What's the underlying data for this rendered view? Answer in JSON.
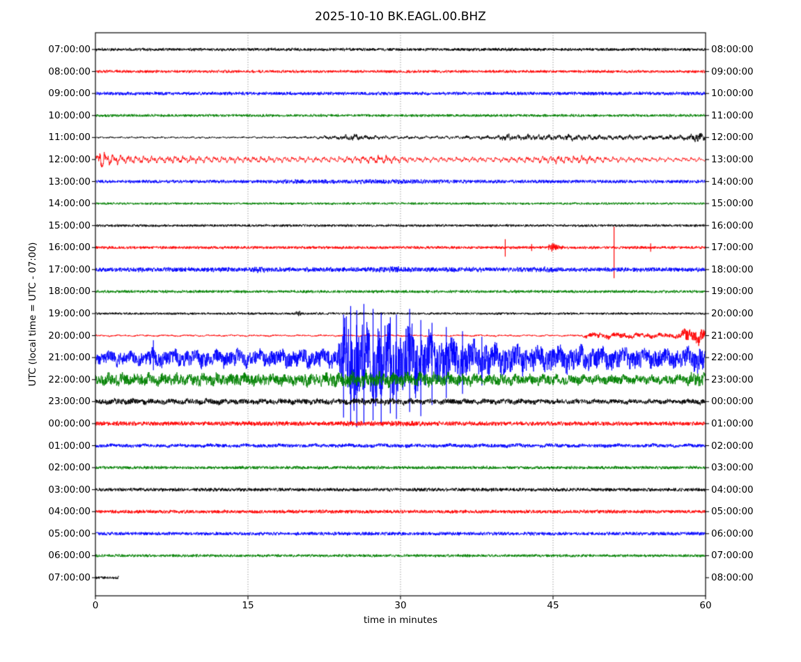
{
  "chart_data": {
    "type": "line",
    "subtype": "helicorder-seismogram",
    "title": "2025-10-10 BK.EAGL.00.BHZ",
    "xlabel": "time in minutes",
    "ylabel": "UTC (local time = UTC - 07:00)",
    "x_ticks": [
      0,
      15,
      30,
      45,
      60
    ],
    "x_range_minutes": [
      0,
      60
    ],
    "gridlines_minutes": [
      15,
      30,
      45
    ],
    "grid_style": "dotted-vertical",
    "minutes_per_row": 60,
    "color_cycle": [
      "#000000",
      "#ff0000",
      "#0000ff",
      "#008000"
    ],
    "rows": [
      {
        "utc_start": "07:00:00",
        "utc_end": "08:00:00",
        "color": "#000000",
        "style": "hf",
        "env": [
          [
            0,
            2.1
          ],
          [
            60,
            2.1
          ]
        ]
      },
      {
        "utc_start": "08:00:00",
        "utc_end": "09:00:00",
        "color": "#ff0000",
        "style": "hf",
        "env": [
          [
            0,
            2.0
          ],
          [
            60,
            2.0
          ]
        ]
      },
      {
        "utc_start": "09:00:00",
        "utc_end": "10:00:00",
        "color": "#0000ff",
        "style": "hf",
        "env": [
          [
            0,
            2.4
          ],
          [
            60,
            2.4
          ]
        ]
      },
      {
        "utc_start": "10:00:00",
        "utc_end": "11:00:00",
        "color": "#008000",
        "style": "hf",
        "env": [
          [
            0,
            1.9
          ],
          [
            60,
            1.9
          ]
        ]
      },
      {
        "utc_start": "11:00:00",
        "utc_end": "12:00:00",
        "color": "#000000",
        "style": "mixed",
        "f": 2.0,
        "jit": 0.6,
        "sm": 0.62,
        "env": [
          [
            0,
            1.4
          ],
          [
            20,
            1.5
          ],
          [
            22,
            2.6
          ],
          [
            24,
            3
          ],
          [
            25.5,
            5.5
          ],
          [
            26.5,
            3.5
          ],
          [
            30,
            2.6
          ],
          [
            33,
            2.4
          ],
          [
            36,
            2.6
          ],
          [
            39.5,
            3
          ],
          [
            40.5,
            6
          ],
          [
            41.5,
            4
          ],
          [
            43,
            5
          ],
          [
            45,
            4
          ],
          [
            47,
            5
          ],
          [
            49,
            4
          ],
          [
            52,
            3.6
          ],
          [
            55,
            3.4
          ],
          [
            57,
            3.8
          ],
          [
            58.5,
            4.5
          ],
          [
            59.4,
            8
          ],
          [
            60,
            4
          ]
        ]
      },
      {
        "utc_start": "12:00:00",
        "utc_end": "13:00:00",
        "color": "#ff0000",
        "style": "lf",
        "f": 2.6,
        "jit": 0.3,
        "sm": 0.95,
        "env": [
          [
            0,
            6
          ],
          [
            0.4,
            16
          ],
          [
            0.9,
            12
          ],
          [
            1.6,
            8
          ],
          [
            3,
            6
          ],
          [
            6,
            5.5
          ],
          [
            10,
            5
          ],
          [
            14,
            4.5
          ],
          [
            18,
            4.2
          ],
          [
            22,
            4.2
          ],
          [
            25,
            4.6
          ],
          [
            27,
            5.8
          ],
          [
            28.5,
            6
          ],
          [
            30,
            4.6
          ],
          [
            33,
            3.8
          ],
          [
            36,
            3.6
          ],
          [
            40,
            4
          ],
          [
            43,
            4.6
          ],
          [
            45.5,
            5.6
          ],
          [
            47,
            5.8
          ],
          [
            49,
            5
          ],
          [
            51,
            4
          ],
          [
            54,
            3.4
          ],
          [
            57,
            3
          ],
          [
            60,
            3
          ]
        ]
      },
      {
        "utc_start": "13:00:00",
        "utc_end": "14:00:00",
        "color": "#0000ff",
        "style": "hf",
        "env": [
          [
            0,
            2.2
          ],
          [
            16,
            2.3
          ],
          [
            20,
            3
          ],
          [
            24,
            3
          ],
          [
            28,
            3.2
          ],
          [
            32,
            3
          ],
          [
            36,
            2.6
          ],
          [
            40,
            2.4
          ],
          [
            60,
            2.3
          ]
        ]
      },
      {
        "utc_start": "14:00:00",
        "utc_end": "15:00:00",
        "color": "#008000",
        "style": "hf",
        "env": [
          [
            0,
            1.6
          ],
          [
            60,
            1.6
          ]
        ]
      },
      {
        "utc_start": "15:00:00",
        "utc_end": "16:00:00",
        "color": "#000000",
        "style": "hf",
        "env": [
          [
            0,
            1.8
          ],
          [
            60,
            1.8
          ]
        ]
      },
      {
        "utc_start": "16:00:00",
        "utc_end": "17:00:00",
        "color": "#ff0000",
        "style": "hf",
        "env": [
          [
            0,
            2
          ],
          [
            44.4,
            2
          ],
          [
            44.8,
            7
          ],
          [
            45.6,
            4
          ],
          [
            46.2,
            2
          ],
          [
            60,
            2
          ]
        ],
        "spikes": [
          {
            "min": 40.3,
            "up": 12,
            "down": 13
          },
          {
            "min": 42.9,
            "up": 5,
            "down": 5
          },
          {
            "min": 51.0,
            "up": 30,
            "down": 44
          },
          {
            "min": 54.6,
            "up": 6,
            "down": 6
          }
        ]
      },
      {
        "utc_start": "17:00:00",
        "utc_end": "18:00:00",
        "color": "#0000ff",
        "style": "hf",
        "env": [
          [
            0,
            3
          ],
          [
            7,
            3.3
          ],
          [
            15,
            3.1
          ],
          [
            16,
            5
          ],
          [
            17,
            3.2
          ],
          [
            27,
            3.2
          ],
          [
            29.5,
            4.6
          ],
          [
            31.5,
            3.4
          ],
          [
            42.5,
            3.1
          ],
          [
            44,
            4.2
          ],
          [
            45.5,
            3.1
          ],
          [
            52,
            3
          ],
          [
            60,
            3
          ]
        ]
      },
      {
        "utc_start": "18:00:00",
        "utc_end": "19:00:00",
        "color": "#008000",
        "style": "hf",
        "env": [
          [
            0,
            2
          ],
          [
            60,
            2
          ]
        ]
      },
      {
        "utc_start": "19:00:00",
        "utc_end": "20:00:00",
        "color": "#000000",
        "style": "hf",
        "env": [
          [
            0,
            1.6
          ],
          [
            19.6,
            1.6
          ],
          [
            20,
            4.2
          ],
          [
            20.4,
            1.6
          ],
          [
            60,
            1.6
          ]
        ]
      },
      {
        "utc_start": "20:00:00",
        "utc_end": "21:00:00",
        "color": "#ff0000",
        "style": "mixed",
        "f": 0.9,
        "jit": 0.6,
        "sm": 0.65,
        "env": [
          [
            0,
            1.5
          ],
          [
            47.8,
            1.5
          ],
          [
            48.3,
            4
          ],
          [
            49.5,
            5.5
          ],
          [
            51,
            5
          ],
          [
            53,
            4.6
          ],
          [
            55,
            4.2
          ],
          [
            57,
            4.5
          ],
          [
            57.6,
            7
          ],
          [
            58.1,
            14
          ],
          [
            58.7,
            9
          ],
          [
            59.2,
            15
          ],
          [
            59.7,
            12
          ],
          [
            60,
            8
          ]
        ]
      },
      {
        "utc_start": "21:00:00",
        "utc_end": "22:00:00",
        "color": "#0000ff",
        "style": "mixed",
        "f": 0.95,
        "jit": 0.75,
        "sm": 0.5,
        "downBias": 1.25,
        "env": [
          [
            0,
            8
          ],
          [
            1.5,
            10
          ],
          [
            3,
            9
          ],
          [
            5,
            10
          ],
          [
            5.7,
            14
          ],
          [
            6.3,
            11
          ],
          [
            8,
            11
          ],
          [
            10,
            12
          ],
          [
            12,
            11
          ],
          [
            14,
            12
          ],
          [
            16,
            11
          ],
          [
            18,
            12
          ],
          [
            20,
            12
          ],
          [
            22,
            13
          ],
          [
            23.6,
            13
          ],
          [
            24.2,
            35
          ],
          [
            24.7,
            60
          ],
          [
            25.3,
            58
          ],
          [
            26,
            60
          ],
          [
            27,
            56
          ],
          [
            28,
            52
          ],
          [
            29,
            48
          ],
          [
            30,
            45
          ],
          [
            31,
            48
          ],
          [
            32,
            42
          ],
          [
            33,
            38
          ],
          [
            34,
            34
          ],
          [
            35,
            30
          ],
          [
            36,
            27
          ],
          [
            37,
            24
          ],
          [
            38,
            23
          ],
          [
            39,
            22
          ],
          [
            40,
            21
          ],
          [
            42,
            19
          ],
          [
            44,
            18
          ],
          [
            46,
            17
          ],
          [
            48,
            16
          ],
          [
            50,
            15
          ],
          [
            52,
            14
          ],
          [
            54,
            14
          ],
          [
            56,
            13
          ],
          [
            57.5,
            13
          ],
          [
            58.5,
            16
          ],
          [
            59.2,
            20
          ],
          [
            60,
            15
          ]
        ],
        "spikes": [
          {
            "min": 5.7,
            "up": 25,
            "down": 18
          },
          {
            "min": 24.4,
            "up": 62,
            "down": 86
          },
          {
            "min": 25.1,
            "up": 74,
            "down": 96
          },
          {
            "min": 25.7,
            "up": 68,
            "down": 100
          },
          {
            "min": 26.4,
            "up": 77,
            "down": 95
          },
          {
            "min": 27.3,
            "up": 70,
            "down": 90
          },
          {
            "min": 28.1,
            "up": 64,
            "down": 94
          },
          {
            "min": 29.0,
            "up": 58,
            "down": 80
          },
          {
            "min": 29.6,
            "up": 62,
            "down": 88
          },
          {
            "min": 30.9,
            "up": 70,
            "down": 78
          },
          {
            "min": 32.0,
            "up": 54,
            "down": 84
          },
          {
            "min": 33.1,
            "up": 50,
            "down": 68
          },
          {
            "min": 34.5,
            "up": 44,
            "down": 58
          },
          {
            "min": 36.1,
            "up": 38,
            "down": 52
          },
          {
            "min": 38.0,
            "up": 30,
            "down": 40
          }
        ]
      },
      {
        "utc_start": "22:00:00",
        "utc_end": "23:00:00",
        "color": "#008000",
        "style": "mixed",
        "f": 1.5,
        "jit": 0.75,
        "sm": 0.5,
        "env": [
          [
            0,
            9
          ],
          [
            2,
            10
          ],
          [
            4,
            9
          ],
          [
            6,
            10
          ],
          [
            8,
            9
          ],
          [
            10,
            10
          ],
          [
            12,
            9
          ],
          [
            14,
            10
          ],
          [
            16,
            9
          ],
          [
            18,
            9
          ],
          [
            20,
            9.5
          ],
          [
            22,
            10
          ],
          [
            24,
            11
          ],
          [
            26,
            12
          ],
          [
            28,
            11
          ],
          [
            30,
            11
          ],
          [
            32,
            10.5
          ],
          [
            34,
            10
          ],
          [
            36,
            9.5
          ],
          [
            38,
            9
          ],
          [
            40,
            8.5
          ],
          [
            44,
            8
          ],
          [
            48,
            7.5
          ],
          [
            52,
            7
          ],
          [
            56,
            7
          ],
          [
            58,
            8
          ],
          [
            59,
            11
          ],
          [
            59.6,
            13
          ],
          [
            60,
            12
          ]
        ]
      },
      {
        "utc_start": "23:00:00",
        "utc_end": "00:00:00",
        "color": "#000000",
        "style": "mixed",
        "f": 1.1,
        "jit": 0.8,
        "sm": 0.45,
        "env": [
          [
            0,
            4
          ],
          [
            3,
            4.8
          ],
          [
            5,
            4.2
          ],
          [
            8,
            4
          ],
          [
            11,
            4.4
          ],
          [
            14,
            4.2
          ],
          [
            17,
            4
          ],
          [
            20,
            4.4
          ],
          [
            23,
            4.6
          ],
          [
            26,
            5
          ],
          [
            29,
            4.8
          ],
          [
            32,
            4.4
          ],
          [
            35,
            4.2
          ],
          [
            38,
            4
          ],
          [
            42,
            4
          ],
          [
            46,
            3.8
          ],
          [
            50,
            3.8
          ],
          [
            54,
            3.6
          ],
          [
            57,
            3.8
          ],
          [
            60,
            4.2
          ]
        ]
      },
      {
        "utc_start": "00:00:00",
        "utc_end": "01:00:00",
        "color": "#ff0000",
        "style": "hf",
        "env": [
          [
            0,
            3
          ],
          [
            10,
            3
          ],
          [
            20,
            3.2
          ],
          [
            26,
            3.5
          ],
          [
            32,
            3.4
          ],
          [
            38,
            3
          ],
          [
            60,
            2.8
          ]
        ]
      },
      {
        "utc_start": "01:00:00",
        "utc_end": "02:00:00",
        "color": "#0000ff",
        "style": "mixed",
        "f": 0.6,
        "jit": 0.8,
        "sm": 0.4,
        "env": [
          [
            0,
            2.8
          ],
          [
            20,
            3
          ],
          [
            40,
            3
          ],
          [
            60,
            2.8
          ]
        ]
      },
      {
        "utc_start": "02:00:00",
        "utc_end": "03:00:00",
        "color": "#008000",
        "style": "hf",
        "env": [
          [
            0,
            2.2
          ],
          [
            60,
            2.2
          ]
        ]
      },
      {
        "utc_start": "03:00:00",
        "utc_end": "04:00:00",
        "color": "#000000",
        "style": "hf",
        "env": [
          [
            0,
            2.4
          ],
          [
            60,
            2.4
          ]
        ]
      },
      {
        "utc_start": "04:00:00",
        "utc_end": "05:00:00",
        "color": "#ff0000",
        "style": "hf",
        "env": [
          [
            0,
            2.4
          ],
          [
            60,
            2.4
          ]
        ]
      },
      {
        "utc_start": "05:00:00",
        "utc_end": "06:00:00",
        "color": "#0000ff",
        "style": "hf",
        "env": [
          [
            0,
            2.4
          ],
          [
            60,
            2.4
          ]
        ]
      },
      {
        "utc_start": "06:00:00",
        "utc_end": "07:00:00",
        "color": "#008000",
        "style": "hf",
        "env": [
          [
            0,
            2
          ],
          [
            60,
            2
          ]
        ]
      },
      {
        "utc_start": "07:00:00",
        "utc_end": "08:00:00",
        "color": "#000000",
        "style": "hf",
        "extent_minutes": 2.3,
        "env": [
          [
            0,
            2
          ],
          [
            2.3,
            2
          ]
        ]
      }
    ]
  }
}
